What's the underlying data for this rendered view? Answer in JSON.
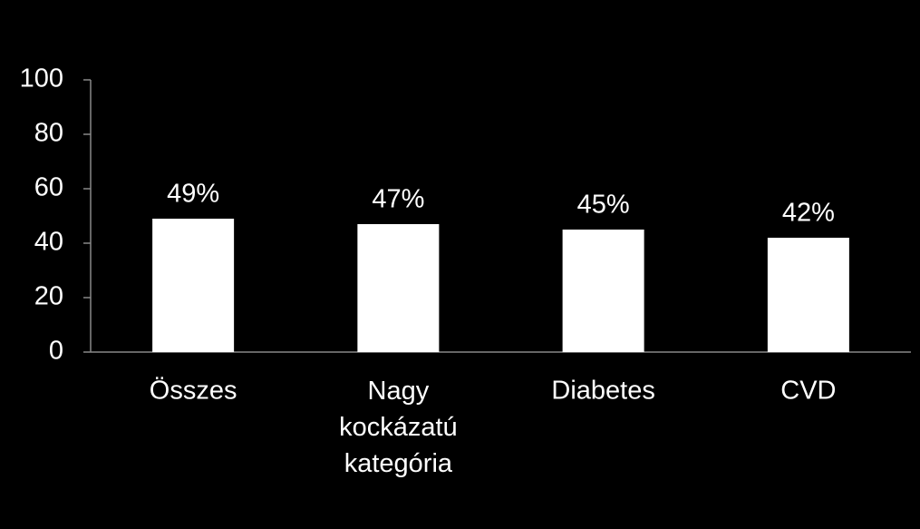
{
  "chart_data": {
    "type": "bar",
    "categories": [
      "Összes",
      "Nagy kockázatú kategória",
      "Diabetes",
      "CVD"
    ],
    "values": [
      49,
      47,
      45,
      42
    ],
    "value_labels": [
      "49%",
      "47%",
      "45%",
      "42%"
    ],
    "color": "#ffffff",
    "ylim": [
      0,
      100
    ],
    "yticks": [
      0,
      20,
      40,
      60,
      80,
      100
    ]
  }
}
